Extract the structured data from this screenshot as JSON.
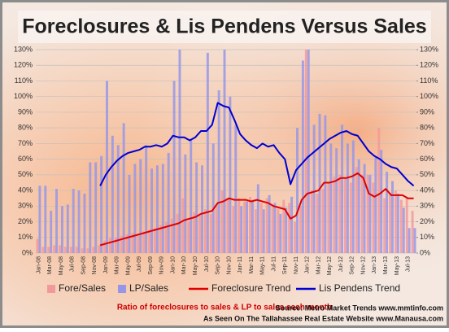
{
  "chart_data": {
    "type": "bar",
    "title": "Foreclosures & Lis Pendens Versus Sales",
    "annotations": [
      "Ratio of foreclosures to sales & LP to sales each month",
      "Source:  Metro Market Trends www.mmtinfo.com",
      "As Seen On The Tallahassee Real Estate Website www.Manausa.com"
    ],
    "categories": [
      "Jan-08",
      null,
      "Mar-08",
      null,
      "May-08",
      null,
      "Jul-08",
      null,
      "Sep-08",
      null,
      "Nov-08",
      null,
      "Jan-09",
      null,
      "Mar-09",
      null,
      "May-09",
      null,
      "Jul-09",
      null,
      "Sep-09",
      null,
      "Nov-09",
      null,
      "Jan-10",
      null,
      "Mar-10",
      null,
      "May-10",
      null,
      "Jul-10",
      null,
      "Sep-10",
      null,
      "Nov-10",
      null,
      "Jan-11",
      null,
      "Mar-11",
      null,
      "May-11",
      null,
      "Jul-11",
      null,
      "Sep-11",
      null,
      "Nov-11",
      null,
      "Jan-12",
      null,
      "Mar-12",
      null,
      "May-12",
      null,
      "Jul-12",
      null,
      "Sep-12",
      null,
      "Nov-12",
      null,
      "Jan-13",
      null,
      "Mar-13",
      null,
      "May-13",
      null,
      "Jul-13",
      null
    ],
    "series": [
      {
        "name": "Fore/Sales",
        "type": "bar",
        "color": "#f29a9a",
        "values": [
          9,
          4,
          4,
          5,
          5,
          4,
          4,
          4,
          3,
          3,
          4,
          5,
          8,
          10,
          10,
          11,
          12,
          13,
          12,
          14,
          15,
          16,
          18,
          20,
          22,
          25,
          35,
          20,
          26,
          24,
          28,
          25,
          30,
          40,
          35,
          30,
          35,
          33,
          36,
          28,
          32,
          35,
          30,
          28,
          34,
          32,
          20,
          30,
          130,
          40,
          38,
          41,
          45,
          49,
          50,
          48,
          45,
          55,
          50,
          50,
          45,
          80,
          35,
          38,
          40,
          34,
          35,
          27
        ]
      },
      {
        "name": "LP/Sales",
        "type": "bar",
        "color": "#9696e6",
        "values": [
          43,
          43,
          27,
          41,
          30,
          31,
          41,
          40,
          38,
          58,
          58,
          62,
          110,
          75,
          69,
          83,
          50,
          57,
          60,
          69,
          54,
          56,
          57,
          64,
          110,
          130,
          63,
          73,
          58,
          56,
          128,
          70,
          104,
          130,
          100,
          82,
          30,
          33,
          34,
          44,
          28,
          37,
          32,
          25,
          29,
          36,
          80,
          123,
          130,
          82,
          89,
          88,
          70,
          67,
          82,
          70,
          72,
          60,
          57,
          50,
          61,
          66,
          52,
          46,
          38,
          29,
          16,
          16
        ]
      },
      {
        "name": "Foreclosure Trend",
        "type": "line",
        "color": "#e00000",
        "values": [
          null,
          null,
          null,
          null,
          null,
          null,
          null,
          null,
          null,
          null,
          null,
          5,
          6,
          7,
          8,
          9,
          10,
          11,
          12,
          13,
          14,
          15,
          16,
          17,
          18,
          19,
          21,
          22,
          23,
          25,
          26,
          27,
          32,
          33,
          35,
          34,
          34,
          34,
          33,
          34,
          33,
          32,
          30,
          29,
          28,
          22,
          24,
          34,
          38,
          39,
          40,
          45,
          45,
          46,
          48,
          48,
          49,
          51,
          48,
          38,
          36,
          38,
          41,
          37,
          37,
          37,
          35,
          35
        ]
      },
      {
        "name": "Lis Pendens Trend",
        "type": "line",
        "color": "#0000d0",
        "values": [
          null,
          null,
          null,
          null,
          null,
          null,
          null,
          null,
          null,
          null,
          null,
          43,
          50,
          55,
          59,
          62,
          64,
          65,
          66,
          68,
          68,
          69,
          68,
          70,
          75,
          74,
          74,
          72,
          74,
          78,
          78,
          82,
          96,
          94,
          93,
          85,
          76,
          72,
          69,
          67,
          70,
          68,
          69,
          64,
          60,
          44,
          53,
          57,
          61,
          64,
          67,
          70,
          73,
          75,
          77,
          78,
          76,
          75,
          70,
          65,
          62,
          60,
          57,
          55,
          54,
          50,
          46,
          43
        ]
      }
    ],
    "ylim": [
      0,
      130
    ],
    "yticks": [
      {
        "value": 0,
        "label": "0%"
      },
      {
        "value": 10,
        "label": "10%"
      },
      {
        "value": 20,
        "label": "20%"
      },
      {
        "value": 30,
        "label": "30%"
      },
      {
        "value": 40,
        "label": "40%"
      },
      {
        "value": 50,
        "label": "50%"
      },
      {
        "value": 60,
        "label": "60%"
      },
      {
        "value": 70,
        "label": "70%"
      },
      {
        "value": 80,
        "label": "80%"
      },
      {
        "value": 90,
        "label": "90%"
      },
      {
        "value": 100,
        "label": "100%"
      },
      {
        "value": 110,
        "label": "110%"
      },
      {
        "value": 120,
        "label": "120%"
      },
      {
        "value": 130,
        "label": "130%"
      }
    ],
    "y2lim": [
      0,
      130
    ],
    "y2ticks": [
      {
        "value": 0,
        "label": "0%"
      },
      {
        "value": 10,
        "label": "10%"
      },
      {
        "value": 20,
        "label": "20%"
      },
      {
        "value": 30,
        "label": "30%"
      },
      {
        "value": 40,
        "label": "40%"
      },
      {
        "value": 50,
        "label": "50%"
      },
      {
        "value": 60,
        "label": "60%"
      },
      {
        "value": 70,
        "label": "70%"
      },
      {
        "value": 80,
        "label": "80%"
      },
      {
        "value": 90,
        "label": "90%"
      },
      {
        "value": 100,
        "label": "100%"
      },
      {
        "value": 110,
        "label": "110%"
      },
      {
        "value": 120,
        "label": "120%"
      },
      {
        "value": 130,
        "label": "130%"
      }
    ],
    "grid": true
  }
}
